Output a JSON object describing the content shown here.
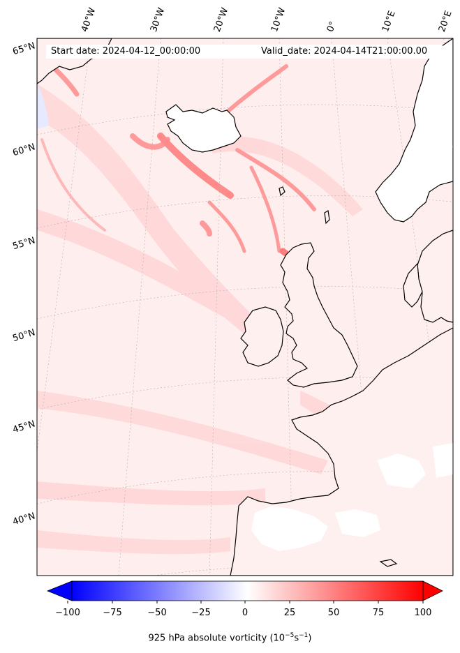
{
  "map": {
    "start_date_label": "Start date: 2024-04-12_00:00:00",
    "valid_date_label": "Valid_date: 2024-04-14T21:00:00.00",
    "longitude_labels": [
      "40°W",
      "30°W",
      "20°W",
      "10°W",
      "0°",
      "10°E",
      "20°E"
    ],
    "latitude_labels": [
      "65°N",
      "60°N",
      "55°N",
      "50°N",
      "45°N",
      "40°N"
    ],
    "field": "925 hPa absolute vorticity",
    "colormap": "bwr",
    "background_color": "#ffecec",
    "coastline_color": "#000000"
  },
  "colorbar": {
    "orientation": "horizontal",
    "ticks": [
      "−100",
      "−75",
      "−50",
      "−25",
      "0",
      "25",
      "50",
      "75",
      "100"
    ],
    "label_main": "925 hPa absolute vorticity (10",
    "label_exp1": "−5",
    "label_mid": "s",
    "label_exp2": "−1",
    "label_end": ")",
    "min_color": "#0000ff",
    "mid_color": "#ffffff",
    "max_color": "#ff0000"
  }
}
